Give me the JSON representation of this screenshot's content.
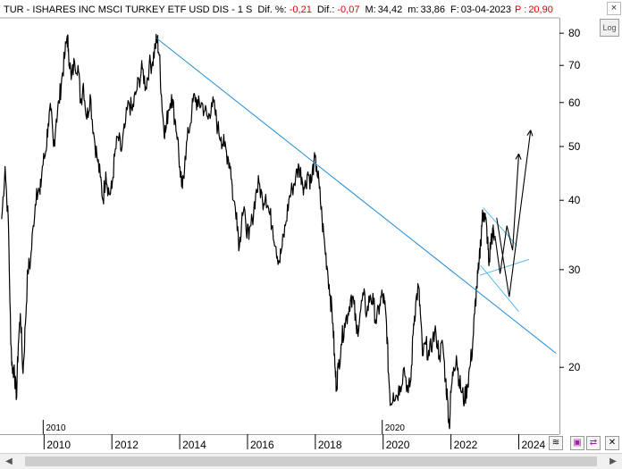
{
  "header": {
    "symbol": "TUR",
    "name": "ISHARES INC MSCI TURKEY ETF USD DIS",
    "period": "1 S",
    "dif_pct_label": "Dif. %:",
    "dif_pct_value": "-0,21",
    "dif_label": "Dif.:",
    "dif_value": "-0,07",
    "max_label": "M:",
    "max_value": "34,42",
    "min_label": "m:",
    "min_value": "33,86",
    "date_label": "F:",
    "date_value": "03-04-2023",
    "p_label": "P :",
    "p_value": "20,90"
  },
  "log_button_label": "Log",
  "close_label": "×",
  "scroll": {
    "left_arrow": "◀",
    "right_arrow": "▶"
  },
  "toolbar_icons": [
    "lines-icon",
    "save-icon",
    "flip-icon",
    "close-icon"
  ],
  "colors": {
    "price": "#000000",
    "trendline": "#1f8bd8",
    "channel": "#55bbe8",
    "header_p": "#e00000"
  },
  "chart_data": {
    "type": "line",
    "scale": "log",
    "ylim": [
      15.5,
      84
    ],
    "xlim": [
      2008.7,
      2025.2
    ],
    "y_ticks": [
      20,
      30,
      40,
      50,
      60,
      70,
      80
    ],
    "x_ticks": [
      2010,
      2012,
      2014,
      2016,
      2018,
      2020,
      2022,
      2024
    ],
    "top_year_labels": [
      2010,
      2020
    ],
    "grid": false,
    "series": [
      {
        "values": [
          [
            2008.75,
            37
          ],
          [
            2008.85,
            46
          ],
          [
            2008.95,
            36
          ],
          [
            2009.02,
            22
          ],
          [
            2009.08,
            19.5
          ],
          [
            2009.12,
            20.2
          ],
          [
            2009.18,
            17.5
          ],
          [
            2009.24,
            22
          ],
          [
            2009.3,
            25
          ],
          [
            2009.38,
            19.5
          ],
          [
            2009.45,
            24
          ],
          [
            2009.52,
            30
          ],
          [
            2009.6,
            31
          ],
          [
            2009.68,
            36
          ],
          [
            2009.78,
            42
          ],
          [
            2009.88,
            41
          ],
          [
            2009.95,
            46
          ],
          [
            2010.05,
            49
          ],
          [
            2010.12,
            55
          ],
          [
            2010.2,
            58
          ],
          [
            2010.28,
            50
          ],
          [
            2010.36,
            56
          ],
          [
            2010.44,
            60
          ],
          [
            2010.52,
            66
          ],
          [
            2010.6,
            72
          ],
          [
            2010.68,
            79
          ],
          [
            2010.72,
            75
          ],
          [
            2010.8,
            66
          ],
          [
            2010.9,
            71
          ],
          [
            2011.0,
            70
          ],
          [
            2011.08,
            60
          ],
          [
            2011.16,
            65
          ],
          [
            2011.26,
            56
          ],
          [
            2011.36,
            62
          ],
          [
            2011.46,
            53
          ],
          [
            2011.56,
            48
          ],
          [
            2011.66,
            44
          ],
          [
            2011.74,
            40
          ],
          [
            2011.82,
            45
          ],
          [
            2011.92,
            41
          ],
          [
            2012.0,
            42
          ],
          [
            2012.08,
            48
          ],
          [
            2012.18,
            52
          ],
          [
            2012.28,
            49
          ],
          [
            2012.38,
            54
          ],
          [
            2012.5,
            60
          ],
          [
            2012.6,
            58
          ],
          [
            2012.7,
            62
          ],
          [
            2012.8,
            66
          ],
          [
            2012.9,
            69
          ],
          [
            2013.0,
            64
          ],
          [
            2013.1,
            70
          ],
          [
            2013.2,
            71
          ],
          [
            2013.28,
            76
          ],
          [
            2013.34,
            78
          ],
          [
            2013.4,
            73
          ],
          [
            2013.46,
            62
          ],
          [
            2013.52,
            55
          ],
          [
            2013.58,
            53
          ],
          [
            2013.66,
            58
          ],
          [
            2013.76,
            62
          ],
          [
            2013.86,
            56
          ],
          [
            2013.94,
            52
          ],
          [
            2014.02,
            44
          ],
          [
            2014.08,
            42
          ],
          [
            2014.16,
            48
          ],
          [
            2014.26,
            53
          ],
          [
            2014.36,
            58
          ],
          [
            2014.44,
            62
          ],
          [
            2014.54,
            59
          ],
          [
            2014.64,
            60
          ],
          [
            2014.74,
            58
          ],
          [
            2014.84,
            56
          ],
          [
            2014.94,
            60
          ],
          [
            2015.04,
            58
          ],
          [
            2015.12,
            54
          ],
          [
            2015.22,
            52
          ],
          [
            2015.32,
            50
          ],
          [
            2015.42,
            48
          ],
          [
            2015.5,
            46
          ],
          [
            2015.58,
            40
          ],
          [
            2015.68,
            38
          ],
          [
            2015.76,
            33
          ],
          [
            2015.84,
            38
          ],
          [
            2015.94,
            37
          ],
          [
            2016.04,
            34
          ],
          [
            2016.14,
            37
          ],
          [
            2016.24,
            41
          ],
          [
            2016.34,
            43
          ],
          [
            2016.44,
            40
          ],
          [
            2016.54,
            41
          ],
          [
            2016.64,
            38
          ],
          [
            2016.74,
            36
          ],
          [
            2016.84,
            33
          ],
          [
            2016.94,
            31
          ],
          [
            2017.02,
            33
          ],
          [
            2017.12,
            36
          ],
          [
            2017.22,
            40
          ],
          [
            2017.32,
            42
          ],
          [
            2017.42,
            44
          ],
          [
            2017.52,
            46
          ],
          [
            2017.6,
            44
          ],
          [
            2017.68,
            42
          ],
          [
            2017.78,
            45
          ],
          [
            2017.88,
            43
          ],
          [
            2017.96,
            47
          ],
          [
            2018.04,
            46
          ],
          [
            2018.12,
            42
          ],
          [
            2018.2,
            37
          ],
          [
            2018.28,
            33
          ],
          [
            2018.36,
            30
          ],
          [
            2018.44,
            27
          ],
          [
            2018.52,
            24
          ],
          [
            2018.58,
            20
          ],
          [
            2018.62,
            18.5
          ],
          [
            2018.68,
            20
          ],
          [
            2018.76,
            22
          ],
          [
            2018.86,
            24
          ],
          [
            2018.96,
            25
          ],
          [
            2019.06,
            27
          ],
          [
            2019.14,
            26
          ],
          [
            2019.22,
            23
          ],
          [
            2019.32,
            25
          ],
          [
            2019.42,
            27
          ],
          [
            2019.52,
            25
          ],
          [
            2019.62,
            27
          ],
          [
            2019.72,
            26
          ],
          [
            2019.8,
            24
          ],
          [
            2019.9,
            26
          ],
          [
            2019.98,
            27
          ],
          [
            2020.04,
            26
          ],
          [
            2020.1,
            24
          ],
          [
            2020.16,
            19.5
          ],
          [
            2020.22,
            17.2
          ],
          [
            2020.3,
            18
          ],
          [
            2020.4,
            17.8
          ],
          [
            2020.5,
            18.5
          ],
          [
            2020.62,
            20
          ],
          [
            2020.74,
            18
          ],
          [
            2020.82,
            19
          ],
          [
            2020.9,
            24
          ],
          [
            2020.96,
            26
          ],
          [
            2021.04,
            28
          ],
          [
            2021.1,
            25
          ],
          [
            2021.16,
            21
          ],
          [
            2021.26,
            22
          ],
          [
            2021.36,
            21
          ],
          [
            2021.46,
            22.5
          ],
          [
            2021.56,
            23
          ],
          [
            2021.66,
            21
          ],
          [
            2021.76,
            22
          ],
          [
            2021.84,
            19
          ],
          [
            2021.9,
            17.5
          ],
          [
            2021.95,
            15.6
          ],
          [
            2022.0,
            18
          ],
          [
            2022.08,
            20
          ],
          [
            2022.16,
            21
          ],
          [
            2022.24,
            19
          ],
          [
            2022.32,
            18
          ],
          [
            2022.4,
            17.5
          ],
          [
            2022.48,
            18.5
          ],
          [
            2022.56,
            20
          ],
          [
            2022.64,
            22
          ],
          [
            2022.7,
            25
          ],
          [
            2022.76,
            28
          ],
          [
            2022.82,
            30
          ],
          [
            2022.88,
            34
          ],
          [
            2022.92,
            37
          ],
          [
            2022.97,
            38
          ],
          [
            2023.02,
            37
          ],
          [
            2023.08,
            34
          ],
          [
            2023.12,
            30.5
          ],
          [
            2023.18,
            34
          ],
          [
            2023.24,
            35
          ],
          [
            2023.28,
            33.9
          ]
        ]
      }
    ],
    "trendlines": [
      {
        "role": "main-downtrend",
        "points": [
          [
            2013.3,
            78.5
          ],
          [
            2025.1,
            21.2
          ]
        ]
      },
      {
        "role": "channel-lower",
        "points": [
          [
            2022.88,
            30.5
          ],
          [
            2024.0,
            25.2
          ]
        ]
      },
      {
        "role": "channel-upper",
        "points": [
          [
            2022.95,
            38.8
          ],
          [
            2023.95,
            33.1
          ]
        ]
      },
      {
        "role": "rising-support",
        "points": [
          [
            2022.85,
            29.3
          ],
          [
            2024.3,
            31.3
          ]
        ]
      }
    ],
    "projection_arrows": [
      {
        "points": [
          [
            2023.3,
            34.5
          ],
          [
            2023.45,
            29.5
          ],
          [
            2023.65,
            36
          ],
          [
            2023.82,
            32.5
          ],
          [
            2024.0,
            48.5
          ]
        ]
      },
      {
        "points": [
          [
            2023.35,
            37.2
          ],
          [
            2023.72,
            26.8
          ],
          [
            2024.35,
            53.5
          ]
        ]
      }
    ]
  }
}
